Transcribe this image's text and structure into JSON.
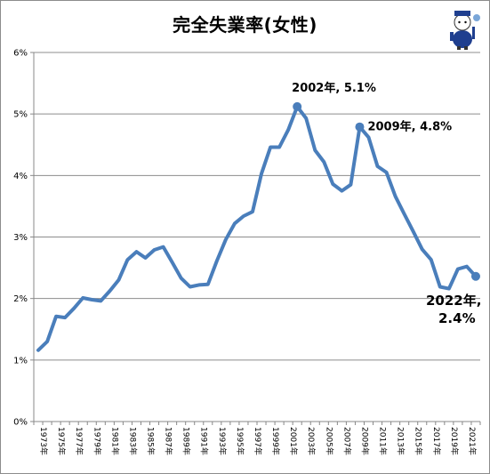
{
  "chart_data": {
    "type": "line",
    "title": "完全失業率(女性)",
    "xlabel": "",
    "ylabel": "",
    "ylim": [
      0,
      6
    ],
    "grid": true,
    "yticks": [
      "0%",
      "1%",
      "2%",
      "3%",
      "4%",
      "5%",
      "6%"
    ],
    "x": [
      1973,
      1974,
      1975,
      1976,
      1977,
      1978,
      1979,
      1980,
      1981,
      1982,
      1983,
      1984,
      1985,
      1986,
      1987,
      1988,
      1989,
      1990,
      1991,
      1992,
      1993,
      1994,
      1995,
      1996,
      1997,
      1998,
      1999,
      2000,
      2001,
      2002,
      2003,
      2004,
      2005,
      2006,
      2007,
      2008,
      2009,
      2010,
      2011,
      2012,
      2013,
      2014,
      2015,
      2016,
      2017,
      2018,
      2019,
      2020,
      2021,
      2022
    ],
    "xtick_labels": [
      "1973年",
      "1975年",
      "1977年",
      "1979年",
      "1981年",
      "1983年",
      "1985年",
      "1987年",
      "1989年",
      "1991年",
      "1993年",
      "1995年",
      "1997年",
      "1999年",
      "2001年",
      "2003年",
      "2005年",
      "2007年",
      "2009年",
      "2011年",
      "2013年",
      "2015年",
      "2017年",
      "2019年",
      "2021年"
    ],
    "series": [
      {
        "name": "",
        "color": "#4a7ebb",
        "values": [
          1.16,
          1.3,
          1.71,
          1.69,
          1.84,
          2.01,
          1.98,
          1.96,
          2.12,
          2.3,
          2.63,
          2.76,
          2.66,
          2.79,
          2.84,
          2.59,
          2.33,
          2.19,
          2.22,
          2.23,
          2.61,
          2.96,
          3.22,
          3.34,
          3.41,
          4.03,
          4.46,
          4.46,
          4.74,
          5.12,
          4.93,
          4.41,
          4.22,
          3.86,
          3.75,
          3.85,
          4.79,
          4.62,
          4.15,
          4.05,
          3.66,
          3.37,
          3.09,
          2.8,
          2.63,
          2.19,
          2.16,
          2.48,
          2.52,
          2.36
        ]
      }
    ],
    "annotations": [
      {
        "x": 2002,
        "text": "2002年, 5.1%"
      },
      {
        "x": 2009,
        "text": "2009年, 4.8%"
      },
      {
        "x": 2022,
        "text_line1": "2022年,",
        "text_line2": "2.4%"
      }
    ]
  }
}
